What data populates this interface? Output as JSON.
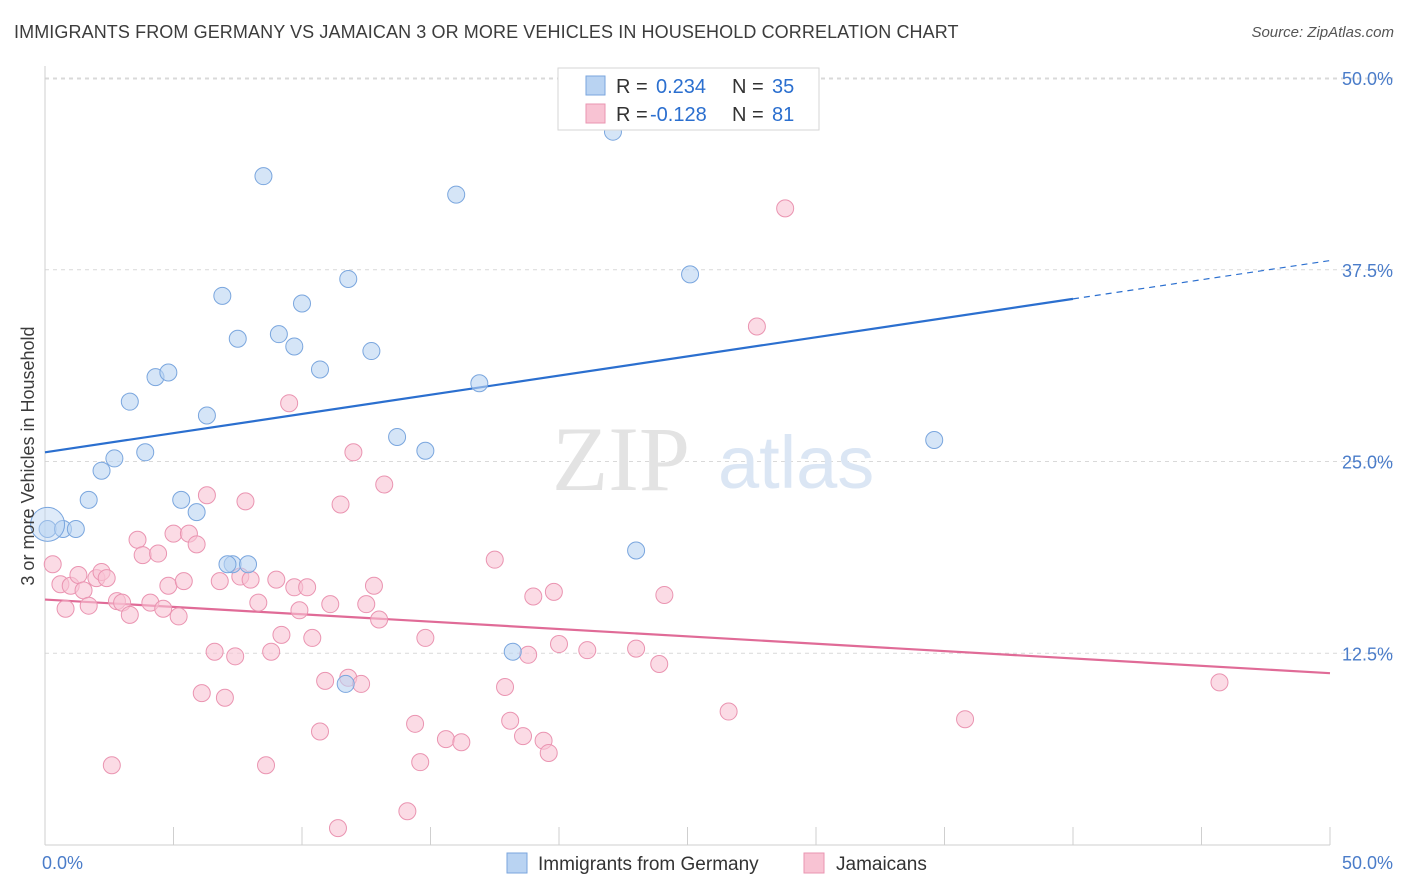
{
  "header": {
    "title": "IMMIGRANTS FROM GERMANY VS JAMAICAN 3 OR MORE VEHICLES IN HOUSEHOLD CORRELATION CHART",
    "source": "Source: ZipAtlas.com"
  },
  "watermark": {
    "zip": "ZIP",
    "atlas": "atlas"
  },
  "colors": {
    "blue_fill": "#b9d3f2",
    "blue_stroke": "#7aa6de",
    "blue_line": "#2b6fcf",
    "pink_fill": "#f8c3d3",
    "pink_stroke": "#ea94b1",
    "pink_line": "#e06b97",
    "tick_text": "#4a7cc9",
    "grid": "#d9d9d9"
  },
  "chart_data": {
    "type": "scatter",
    "title": "IMMIGRANTS FROM GERMANY VS JAMAICAN 3 OR MORE VEHICLES IN HOUSEHOLD CORRELATION CHART",
    "xlabel": "",
    "ylabel": "3 or more Vehicles in Household",
    "xlim": [
      0,
      50
    ],
    "ylim": [
      0,
      50
    ],
    "x_tick_labels": [
      "0.0%",
      "50.0%"
    ],
    "y_ticks": [
      12.5,
      25.0,
      37.5,
      50.0
    ],
    "y_tick_labels": [
      "12.5%",
      "25.0%",
      "37.5%",
      "50.0%"
    ],
    "grid": true,
    "legend": {
      "placement": "top-center",
      "entries": [
        {
          "r_label": "R =",
          "r_value": "0.234",
          "n_label": "N =",
          "n_value": "35"
        },
        {
          "r_label": "R =",
          "r_value": "-0.128",
          "n_label": "N =",
          "n_value": "81"
        }
      ]
    },
    "series": [
      {
        "name": "Immigrants from Germany",
        "color": "#7aa6de",
        "trend": {
          "x": [
            0,
            40
          ],
          "y": [
            25.6,
            35.6
          ],
          "dashed_extension_to_x": 50,
          "dashed_extension_y": 38.1
        },
        "points": [
          [
            0.1,
            20.6
          ],
          [
            0.7,
            20.6
          ],
          [
            1.2,
            20.6
          ],
          [
            1.7,
            22.5
          ],
          [
            2.2,
            24.4
          ],
          [
            2.7,
            25.2
          ],
          [
            3.3,
            28.9
          ],
          [
            3.9,
            25.6
          ],
          [
            4.3,
            30.5
          ],
          [
            4.8,
            30.8
          ],
          [
            5.3,
            22.5
          ],
          [
            5.9,
            21.7
          ],
          [
            6.3,
            28.0
          ],
          [
            6.9,
            35.8
          ],
          [
            7.3,
            18.3
          ],
          [
            7.9,
            18.3
          ],
          [
            7.5,
            33.0
          ],
          [
            8.5,
            43.6
          ],
          [
            9.1,
            33.3
          ],
          [
            9.7,
            32.5
          ],
          [
            10.7,
            31.0
          ],
          [
            10.0,
            35.3
          ],
          [
            11.8,
            36.9
          ],
          [
            12.7,
            32.2
          ],
          [
            13.7,
            26.6
          ],
          [
            14.8,
            25.7
          ],
          [
            16.0,
            42.4
          ],
          [
            16.9,
            30.1
          ],
          [
            18.2,
            12.6
          ],
          [
            22.1,
            46.5
          ],
          [
            23.0,
            19.2
          ],
          [
            25.1,
            37.2
          ],
          [
            34.6,
            26.4
          ],
          [
            11.7,
            10.5
          ],
          [
            7.1,
            18.3
          ]
        ]
      },
      {
        "name": "Jamaicans",
        "color": "#ea94b1",
        "trend": {
          "x": [
            0,
            50
          ],
          "y": [
            16.0,
            11.2
          ]
        },
        "points": [
          [
            0.3,
            18.3
          ],
          [
            0.6,
            17.0
          ],
          [
            0.8,
            15.4
          ],
          [
            1.0,
            16.9
          ],
          [
            1.3,
            17.6
          ],
          [
            1.5,
            16.6
          ],
          [
            1.7,
            15.6
          ],
          [
            2.0,
            17.4
          ],
          [
            2.2,
            17.8
          ],
          [
            2.4,
            17.4
          ],
          [
            2.6,
            5.2
          ],
          [
            2.8,
            15.9
          ],
          [
            3.0,
            15.8
          ],
          [
            3.3,
            15.0
          ],
          [
            3.6,
            19.9
          ],
          [
            3.8,
            18.9
          ],
          [
            4.1,
            15.8
          ],
          [
            4.4,
            19.0
          ],
          [
            4.6,
            15.4
          ],
          [
            4.8,
            16.9
          ],
          [
            5.0,
            20.3
          ],
          [
            5.2,
            14.9
          ],
          [
            5.4,
            17.2
          ],
          [
            5.6,
            20.3
          ],
          [
            5.9,
            19.6
          ],
          [
            6.1,
            9.9
          ],
          [
            6.3,
            22.8
          ],
          [
            6.6,
            12.6
          ],
          [
            6.8,
            17.2
          ],
          [
            7.0,
            9.6
          ],
          [
            7.4,
            12.3
          ],
          [
            7.6,
            17.5
          ],
          [
            7.8,
            22.4
          ],
          [
            8.0,
            17.3
          ],
          [
            8.3,
            15.8
          ],
          [
            8.6,
            5.2
          ],
          [
            8.8,
            12.6
          ],
          [
            9.0,
            17.3
          ],
          [
            9.2,
            13.7
          ],
          [
            9.5,
            28.8
          ],
          [
            9.7,
            16.8
          ],
          [
            9.9,
            15.3
          ],
          [
            10.2,
            16.8
          ],
          [
            10.4,
            13.5
          ],
          [
            10.7,
            7.4
          ],
          [
            10.9,
            10.7
          ],
          [
            11.1,
            15.7
          ],
          [
            11.4,
            1.1
          ],
          [
            11.5,
            22.2
          ],
          [
            11.8,
            10.9
          ],
          [
            12.0,
            25.6
          ],
          [
            12.3,
            10.5
          ],
          [
            12.5,
            15.7
          ],
          [
            12.8,
            16.9
          ],
          [
            13.0,
            14.7
          ],
          [
            13.2,
            23.5
          ],
          [
            14.1,
            2.2
          ],
          [
            14.4,
            7.9
          ],
          [
            14.6,
            5.4
          ],
          [
            14.8,
            13.5
          ],
          [
            15.6,
            6.9
          ],
          [
            16.2,
            6.7
          ],
          [
            17.5,
            18.6
          ],
          [
            17.9,
            10.3
          ],
          [
            18.1,
            8.1
          ],
          [
            18.6,
            7.1
          ],
          [
            18.8,
            12.4
          ],
          [
            19.0,
            16.2
          ],
          [
            19.4,
            6.8
          ],
          [
            19.6,
            6.0
          ],
          [
            19.8,
            16.5
          ],
          [
            20.0,
            13.1
          ],
          [
            21.1,
            12.7
          ],
          [
            23.0,
            12.8
          ],
          [
            23.9,
            11.8
          ],
          [
            24.1,
            16.3
          ],
          [
            26.6,
            8.7
          ],
          [
            27.7,
            33.8
          ],
          [
            28.8,
            41.5
          ],
          [
            35.8,
            8.2
          ],
          [
            45.7,
            10.6
          ]
        ]
      }
    ]
  },
  "bottom_legend": [
    {
      "label": "Immigrants from Germany"
    },
    {
      "label": "Jamaicans"
    }
  ]
}
